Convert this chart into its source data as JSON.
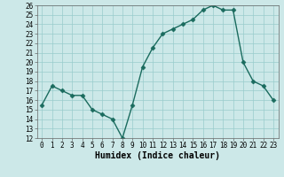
{
  "xlabel": "Humidex (Indice chaleur)",
  "x": [
    0,
    1,
    2,
    3,
    4,
    5,
    6,
    7,
    8,
    9,
    10,
    11,
    12,
    13,
    14,
    15,
    16,
    17,
    18,
    19,
    20,
    21,
    22,
    23
  ],
  "y": [
    15.5,
    17.5,
    17.0,
    16.5,
    16.5,
    15.0,
    14.5,
    14.0,
    12.0,
    15.5,
    19.5,
    21.5,
    23.0,
    23.5,
    24.0,
    24.5,
    25.5,
    26.0,
    25.5,
    25.5,
    20.0,
    18.0,
    17.5,
    16.0
  ],
  "line_color": "#1a6b5e",
  "marker": "D",
  "marker_size": 2.5,
  "bg_color": "#cce8e8",
  "plot_bg_color": "#cce8e8",
  "grid_color": "#99cccc",
  "ylim": [
    12,
    26
  ],
  "xlim": [
    -0.5,
    23.5
  ],
  "yticks": [
    12,
    13,
    14,
    15,
    16,
    17,
    18,
    19,
    20,
    21,
    22,
    23,
    24,
    25,
    26
  ],
  "xticks": [
    0,
    1,
    2,
    3,
    4,
    5,
    6,
    7,
    8,
    9,
    10,
    11,
    12,
    13,
    14,
    15,
    16,
    17,
    18,
    19,
    20,
    21,
    22,
    23
  ],
  "tick_fontsize": 5.5,
  "xlabel_fontsize": 7.0,
  "linewidth": 1.0
}
